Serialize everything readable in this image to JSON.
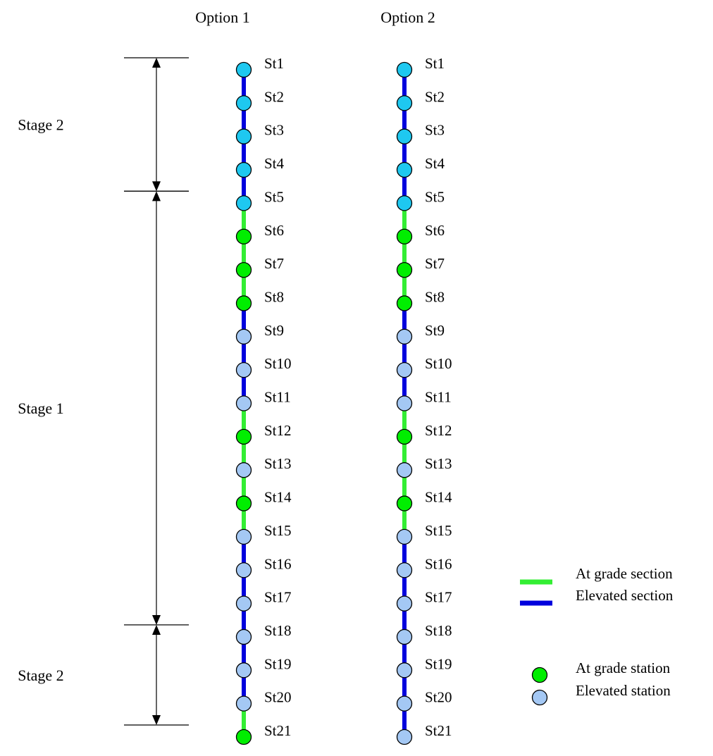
{
  "options": [
    {
      "title": "Option 1",
      "stations": [
        {
          "label": "St1",
          "type": "elevated-upper"
        },
        {
          "label": "St2",
          "type": "elevated-upper"
        },
        {
          "label": "St3",
          "type": "elevated-upper"
        },
        {
          "label": "St4",
          "type": "elevated-upper"
        },
        {
          "label": "St5",
          "type": "elevated-upper"
        },
        {
          "label": "St6",
          "type": "at-grade"
        },
        {
          "label": "St7",
          "type": "at-grade"
        },
        {
          "label": "St8",
          "type": "at-grade"
        },
        {
          "label": "St9",
          "type": "elevated"
        },
        {
          "label": "St10",
          "type": "elevated"
        },
        {
          "label": "St11",
          "type": "elevated"
        },
        {
          "label": "St12",
          "type": "at-grade"
        },
        {
          "label": "St13",
          "type": "elevated"
        },
        {
          "label": "St14",
          "type": "at-grade"
        },
        {
          "label": "St15",
          "type": "elevated"
        },
        {
          "label": "St16",
          "type": "elevated"
        },
        {
          "label": "St17",
          "type": "elevated"
        },
        {
          "label": "St18",
          "type": "elevated"
        },
        {
          "label": "St19",
          "type": "elevated"
        },
        {
          "label": "St20",
          "type": "elevated"
        },
        {
          "label": "St21",
          "type": "at-grade"
        }
      ],
      "segments": [
        "elevated",
        "elevated",
        "elevated",
        "elevated",
        "at-grade",
        "at-grade",
        "at-grade",
        "elevated",
        "elevated",
        "elevated",
        "at-grade",
        "at-grade",
        "at-grade",
        "at-grade",
        "elevated",
        "elevated",
        "elevated",
        "elevated",
        "elevated",
        "at-grade"
      ]
    },
    {
      "title": "Option 2",
      "stations": [
        {
          "label": "St1",
          "type": "elevated-upper"
        },
        {
          "label": "St2",
          "type": "elevated-upper"
        },
        {
          "label": "St3",
          "type": "elevated-upper"
        },
        {
          "label": "St4",
          "type": "elevated-upper"
        },
        {
          "label": "St5",
          "type": "elevated-upper"
        },
        {
          "label": "St6",
          "type": "at-grade"
        },
        {
          "label": "St7",
          "type": "at-grade"
        },
        {
          "label": "St8",
          "type": "at-grade"
        },
        {
          "label": "St9",
          "type": "elevated"
        },
        {
          "label": "St10",
          "type": "elevated"
        },
        {
          "label": "St11",
          "type": "elevated"
        },
        {
          "label": "St12",
          "type": "at-grade"
        },
        {
          "label": "St13",
          "type": "elevated"
        },
        {
          "label": "St14",
          "type": "at-grade"
        },
        {
          "label": "St15",
          "type": "elevated"
        },
        {
          "label": "St16",
          "type": "elevated"
        },
        {
          "label": "St17",
          "type": "elevated"
        },
        {
          "label": "St18",
          "type": "elevated"
        },
        {
          "label": "St19",
          "type": "elevated"
        },
        {
          "label": "St20",
          "type": "elevated"
        },
        {
          "label": "St21",
          "type": "elevated"
        }
      ],
      "segments": [
        "elevated",
        "elevated",
        "elevated",
        "elevated",
        "at-grade",
        "at-grade",
        "at-grade",
        "elevated",
        "elevated",
        "elevated",
        "at-grade",
        "at-grade",
        "at-grade",
        "at-grade",
        "elevated",
        "elevated",
        "elevated",
        "elevated",
        "elevated",
        "elevated"
      ]
    }
  ],
  "stages": [
    {
      "label": "Stage 2",
      "from_station": 1,
      "to_station": 5
    },
    {
      "label": "Stage 1",
      "from_station": 5,
      "to_station": 18
    },
    {
      "label": "Stage 2",
      "from_station": 18,
      "to_station": 21
    }
  ],
  "legend": {
    "sections": [
      {
        "label": "At grade section",
        "type": "at-grade"
      },
      {
        "label": "Elevated section",
        "type": "elevated"
      }
    ],
    "stations": [
      {
        "label": "At grade station",
        "type": "at-grade"
      },
      {
        "label": "Elevated station",
        "type": "elevated"
      }
    ]
  },
  "colors": {
    "at_grade_line": "#33ee33",
    "elevated_line": "#0000dd",
    "at_grade_station": "#00ee00",
    "elevated_station": "#a4c8f4",
    "elevated_upper_station": "#1ec8f0",
    "outline": "#000000"
  }
}
